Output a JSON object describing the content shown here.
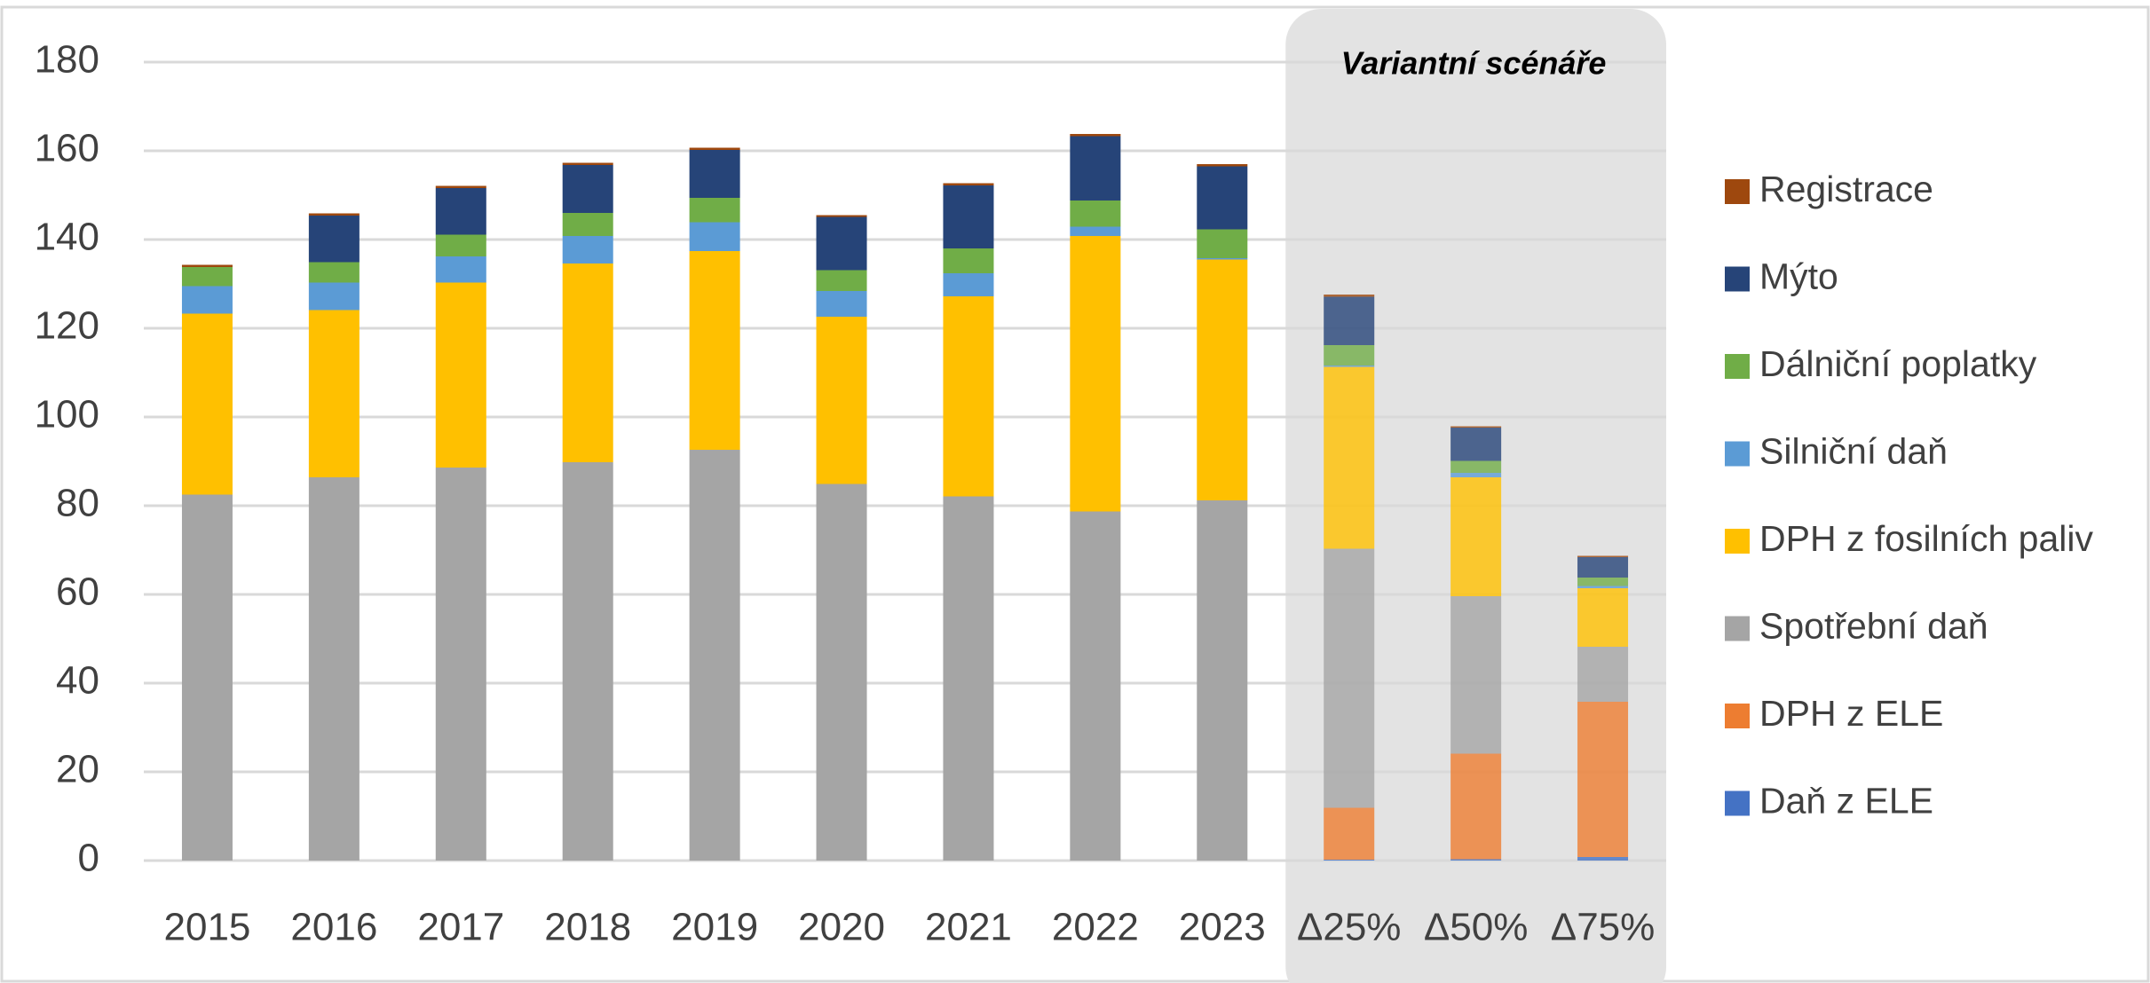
{
  "chart_data": {
    "type": "stacked_bar",
    "annotations": [
      "Variantní scénáře"
    ],
    "categories": [
      "2015",
      "2016",
      "2017",
      "2018",
      "2019",
      "2020",
      "2021",
      "2022",
      "2023",
      "Δ25%",
      "Δ50%",
      "Δ75%"
    ],
    "series": [
      {
        "name": "Daň z ELE",
        "color": "#4472c4",
        "values": [
          0,
          0,
          0,
          0,
          0,
          0,
          0,
          0,
          0,
          0.2,
          0.3,
          0.8
        ]
      },
      {
        "name": "DPH z ELE",
        "color": "#ed7d31",
        "values": [
          0,
          0,
          0,
          0,
          0,
          0,
          0,
          0,
          0,
          11.7,
          23.8,
          35
        ]
      },
      {
        "name": "Spotřební daň",
        "color": "#a5a5a5",
        "values": [
          82.5,
          86.4,
          88.6,
          89.8,
          92.6,
          84.9,
          82.1,
          78.7,
          81.2,
          58.4,
          35.5,
          12.4
        ]
      },
      {
        "name": "DPH z fosilních paliv",
        "color": "#ffc000",
        "values": [
          40.8,
          37.7,
          41.7,
          44.8,
          44.8,
          37.7,
          45.1,
          62.1,
          54.3,
          41,
          26.8,
          13.2
        ]
      },
      {
        "name": "Silniční daň",
        "color": "#5b9bd5",
        "values": [
          6.2,
          6.2,
          5.9,
          6.2,
          6.5,
          5.8,
          5.2,
          2.1,
          0.3,
          0.3,
          1,
          0.5
        ]
      },
      {
        "name": "Dálniční poplatky",
        "color": "#70ad47",
        "values": [
          4.3,
          4.6,
          4.9,
          5.2,
          5.5,
          4.7,
          5.6,
          5.9,
          6.5,
          4.6,
          2.7,
          1.9
        ]
      },
      {
        "name": "Mýto",
        "color": "#264478",
        "values": [
          0,
          10.5,
          10.5,
          10.8,
          10.8,
          12,
          14.2,
          14.5,
          14.2,
          10.9,
          7.5,
          4.6
        ]
      },
      {
        "name": "Registrace",
        "color": "#9e480e",
        "values": [
          0.5,
          0.5,
          0.5,
          0.5,
          0.5,
          0.4,
          0.5,
          0.5,
          0.5,
          0.5,
          0.3,
          0.3
        ]
      }
    ],
    "ylim": [
      0,
      180
    ],
    "yticks": [
      0,
      20,
      40,
      60,
      80,
      100,
      120,
      140,
      160,
      180
    ],
    "grid": true,
    "legend": "right"
  }
}
